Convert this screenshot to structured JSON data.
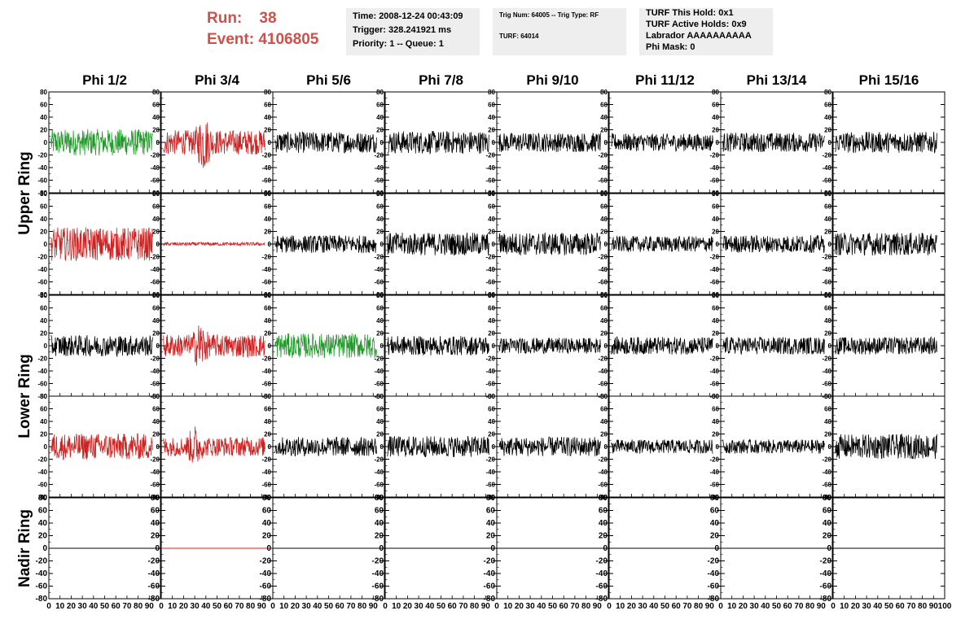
{
  "header": {
    "run_label": "Run:",
    "run_value": "38",
    "event_label": "Event:",
    "event_value": "4106805",
    "run_color": "#d0504a"
  },
  "info1": {
    "time": "Time: 2008-12-24 00:43:09",
    "trigger": "Trigger: 328.241921 ms",
    "priority": "Priority: 1 -- Queue: 1"
  },
  "info2": {
    "trig_line": "Trig Num: 64005 -- Trig Type: RF",
    "turf": "TURF: 64014"
  },
  "info3": {
    "hold": "TURF This Hold: 0x1",
    "active": "TURF Active Holds: 0x9",
    "labrador": "Labrador AAAAAAAAAA",
    "mask": "Phi Mask: 0"
  },
  "chart_data": {
    "type": "line",
    "columns": [
      "Phi 1/2",
      "Phi 3/4",
      "Phi 5/6",
      "Phi 7/8",
      "Phi 9/10",
      "Phi 11/12",
      "Phi 13/14",
      "Phi 15/16"
    ],
    "ring_labels": [
      "Upper Ring",
      "Lower Ring",
      "Nadir Ring"
    ],
    "rows_per_ring": [
      2,
      2,
      1
    ],
    "xlim": [
      0,
      100
    ],
    "ylim": [
      -80,
      80
    ],
    "y_ticks": [
      -80,
      -60,
      -40,
      -20,
      0,
      20,
      40,
      60,
      80
    ],
    "x_tick_labels": [
      "0",
      "10",
      "20",
      "30",
      "40",
      "50",
      "60",
      "70",
      "80",
      "90",
      "100"
    ],
    "colors": {
      "normal": "#000000",
      "triggered": "#cc2222",
      "phi_mask": "#22992a"
    },
    "traces": [
      [
        {
          "color": "green",
          "amp": 15
        },
        {
          "color": "red",
          "amp": 14,
          "burst": 38,
          "burst_amp": 35
        },
        {
          "color": "black",
          "amp": 12
        },
        {
          "color": "black",
          "amp": 13
        },
        {
          "color": "black",
          "amp": 11
        },
        {
          "color": "black",
          "amp": 10
        },
        {
          "color": "black",
          "amp": 11
        },
        {
          "color": "black",
          "amp": 12
        }
      ],
      [
        {
          "color": "red",
          "amp": 19
        },
        {
          "color": "red",
          "amp": 2
        },
        {
          "color": "black",
          "amp": 10
        },
        {
          "color": "black",
          "amp": 13
        },
        {
          "color": "black",
          "amp": 13
        },
        {
          "color": "black",
          "amp": 9
        },
        {
          "color": "black",
          "amp": 10
        },
        {
          "color": "black",
          "amp": 13
        }
      ],
      [
        {
          "color": "black",
          "amp": 12
        },
        {
          "color": "red",
          "amp": 13,
          "burst": 35,
          "burst_amp": 30
        },
        {
          "color": "green",
          "amp": 14
        },
        {
          "color": "black",
          "amp": 11
        },
        {
          "color": "black",
          "amp": 9
        },
        {
          "color": "black",
          "amp": 10
        },
        {
          "color": "black",
          "amp": 10
        },
        {
          "color": "black",
          "amp": 10
        }
      ],
      [
        {
          "color": "red",
          "amp": 15
        },
        {
          "color": "red",
          "amp": 11,
          "burst": 30,
          "burst_amp": 26
        },
        {
          "color": "black",
          "amp": 11
        },
        {
          "color": "black",
          "amp": 12
        },
        {
          "color": "black",
          "amp": 11
        },
        {
          "color": "black",
          "amp": 8
        },
        {
          "color": "black",
          "amp": 8
        },
        {
          "color": "black",
          "amp": 14
        }
      ],
      [
        {
          "color": "black",
          "amp": 0
        },
        {
          "color": "red",
          "amp": 0
        },
        {
          "color": "black",
          "amp": 0
        },
        {
          "color": "black",
          "amp": 0
        },
        {
          "color": "black",
          "amp": 0
        },
        {
          "color": "black",
          "amp": 0
        },
        {
          "color": "black",
          "amp": 0
        },
        {
          "color": "black",
          "amp": 0
        }
      ]
    ]
  }
}
